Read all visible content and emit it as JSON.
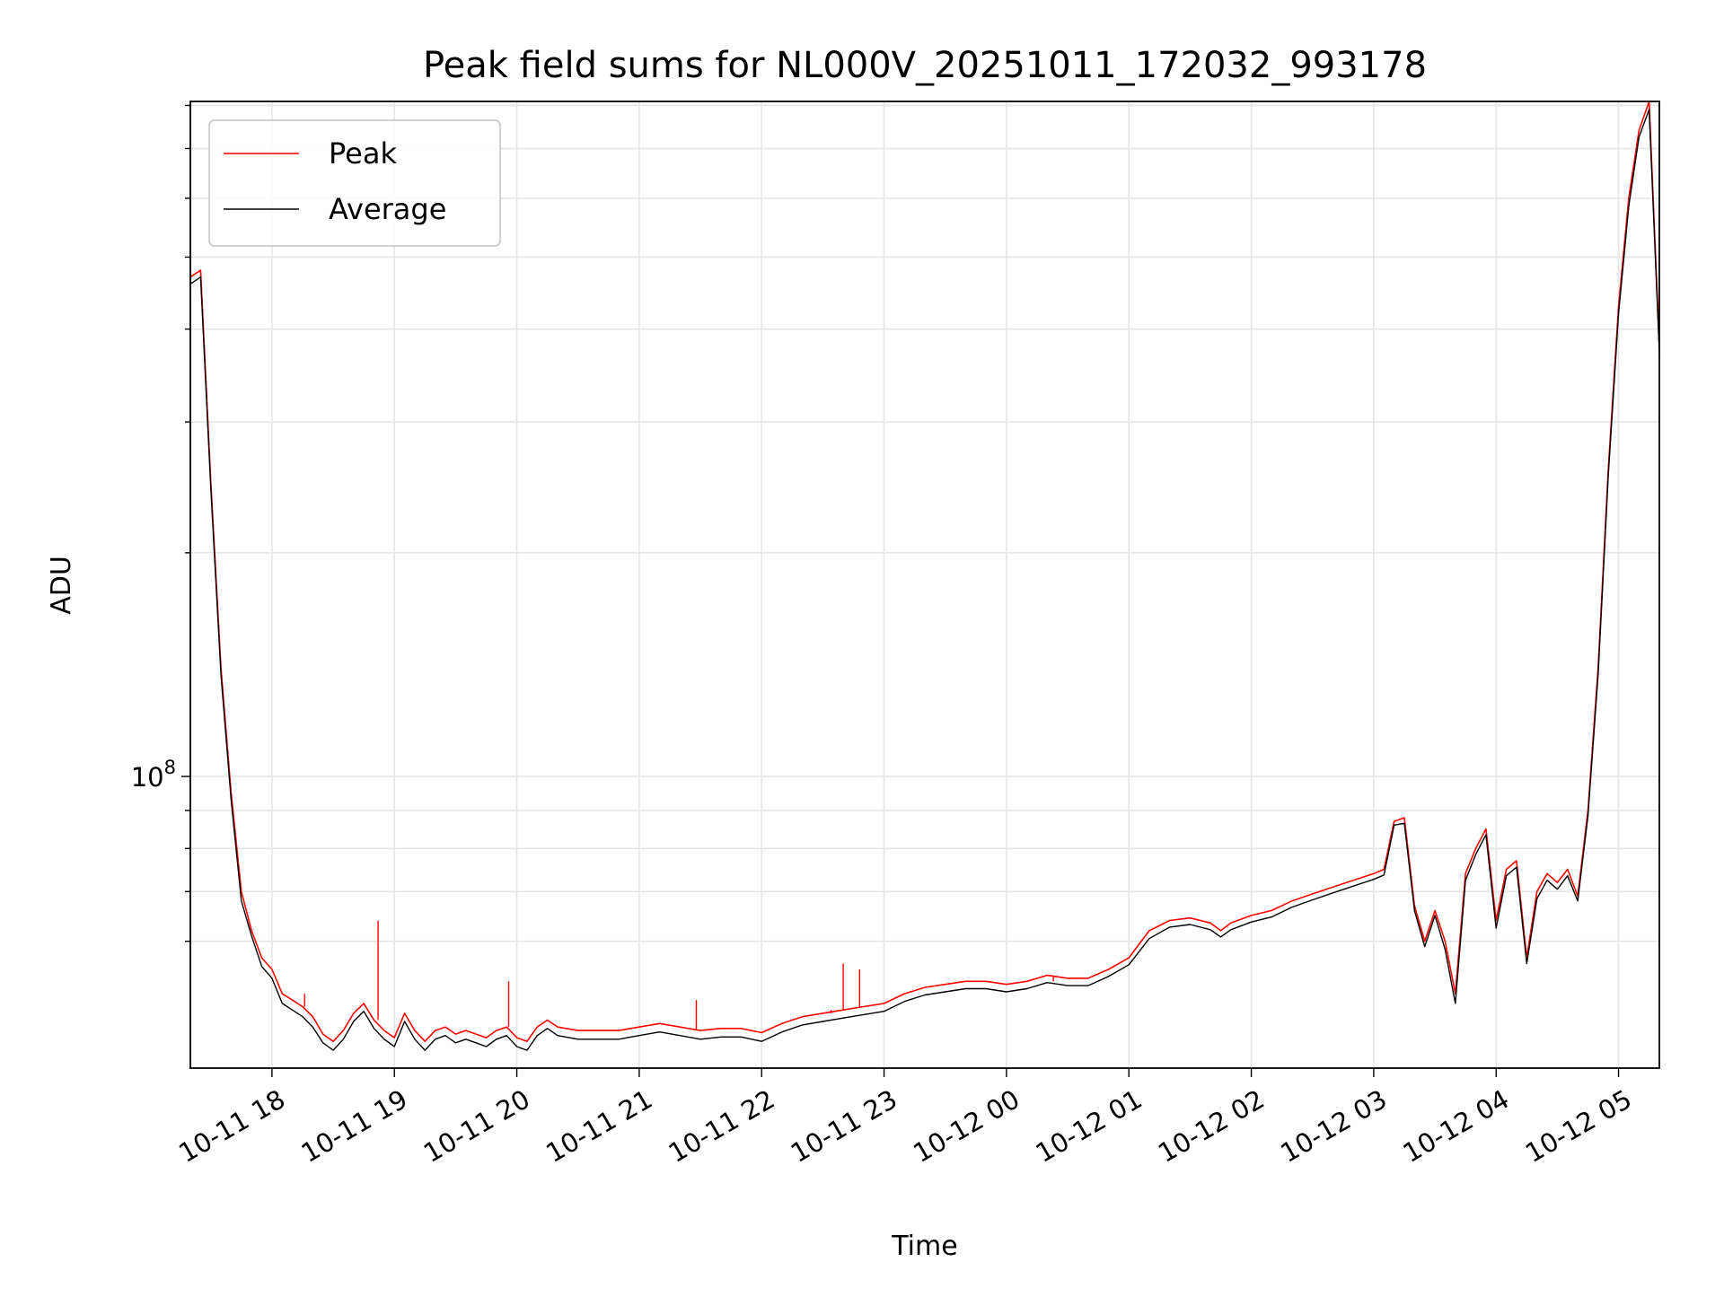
{
  "chart_data": {
    "type": "line",
    "title": "Peak field sums for NL000V_20251011_172032_993178",
    "xlabel": "Time",
    "ylabel": "ADU",
    "yscale": "log",
    "grid": true,
    "legend_position": "top-left",
    "xlim": [
      "2025-10-11 17:20",
      "2025-10-12 05:20"
    ],
    "ylim": [
      40500000,
      810000000
    ],
    "x_ticks": [
      {
        "t": "2025-10-11 18:00",
        "label": "10-11 18"
      },
      {
        "t": "2025-10-11 19:00",
        "label": "10-11 19"
      },
      {
        "t": "2025-10-11 20:00",
        "label": "10-11 20"
      },
      {
        "t": "2025-10-11 21:00",
        "label": "10-11 21"
      },
      {
        "t": "2025-10-11 22:00",
        "label": "10-11 22"
      },
      {
        "t": "2025-10-11 23:00",
        "label": "10-11 23"
      },
      {
        "t": "2025-10-12 00:00",
        "label": "10-12 00"
      },
      {
        "t": "2025-10-12 01:00",
        "label": "10-12 01"
      },
      {
        "t": "2025-10-12 02:00",
        "label": "10-12 02"
      },
      {
        "t": "2025-10-12 03:00",
        "label": "10-12 03"
      },
      {
        "t": "2025-10-12 04:00",
        "label": "10-12 04"
      },
      {
        "t": "2025-10-12 05:00",
        "label": "10-12 05"
      }
    ],
    "y_ticks": [
      {
        "value": 100000000,
        "base": "10",
        "exp": "8"
      }
    ],
    "y_minor_ticks": [
      60000000,
      70000000,
      80000000,
      90000000,
      200000000,
      300000000,
      400000000,
      500000000,
      600000000,
      700000000,
      800000000
    ],
    "x": [
      "2025-10-11 17:20",
      "2025-10-11 17:25",
      "2025-10-11 17:30",
      "2025-10-11 17:35",
      "2025-10-11 17:40",
      "2025-10-11 17:45",
      "2025-10-11 17:50",
      "2025-10-11 17:55",
      "2025-10-11 18:00",
      "2025-10-11 18:05",
      "2025-10-11 18:10",
      "2025-10-11 18:15",
      "2025-10-11 18:20",
      "2025-10-11 18:25",
      "2025-10-11 18:30",
      "2025-10-11 18:35",
      "2025-10-11 18:40",
      "2025-10-11 18:45",
      "2025-10-11 18:50",
      "2025-10-11 18:55",
      "2025-10-11 19:00",
      "2025-10-11 19:05",
      "2025-10-11 19:10",
      "2025-10-11 19:15",
      "2025-10-11 19:20",
      "2025-10-11 19:25",
      "2025-10-11 19:30",
      "2025-10-11 19:35",
      "2025-10-11 19:40",
      "2025-10-11 19:45",
      "2025-10-11 19:50",
      "2025-10-11 19:55",
      "2025-10-11 20:00",
      "2025-10-11 20:05",
      "2025-10-11 20:10",
      "2025-10-11 20:15",
      "2025-10-11 20:20",
      "2025-10-11 20:30",
      "2025-10-11 20:40",
      "2025-10-11 20:50",
      "2025-10-11 21:00",
      "2025-10-11 21:10",
      "2025-10-11 21:20",
      "2025-10-11 21:30",
      "2025-10-11 21:40",
      "2025-10-11 21:50",
      "2025-10-11 22:00",
      "2025-10-11 22:10",
      "2025-10-11 22:20",
      "2025-10-11 22:30",
      "2025-10-11 22:40",
      "2025-10-11 22:50",
      "2025-10-11 23:00",
      "2025-10-11 23:10",
      "2025-10-11 23:20",
      "2025-10-11 23:30",
      "2025-10-11 23:40",
      "2025-10-11 23:50",
      "2025-10-12 00:00",
      "2025-10-12 00:10",
      "2025-10-12 00:20",
      "2025-10-12 00:30",
      "2025-10-12 00:40",
      "2025-10-12 00:50",
      "2025-10-12 01:00",
      "2025-10-12 01:10",
      "2025-10-12 01:20",
      "2025-10-12 01:30",
      "2025-10-12 01:40",
      "2025-10-12 01:45",
      "2025-10-12 01:50",
      "2025-10-12 02:00",
      "2025-10-12 02:10",
      "2025-10-12 02:20",
      "2025-10-12 02:30",
      "2025-10-12 02:40",
      "2025-10-12 02:50",
      "2025-10-12 03:00",
      "2025-10-12 03:05",
      "2025-10-12 03:10",
      "2025-10-12 03:15",
      "2025-10-12 03:20",
      "2025-10-12 03:25",
      "2025-10-12 03:30",
      "2025-10-12 03:35",
      "2025-10-12 03:40",
      "2025-10-12 03:45",
      "2025-10-12 03:50",
      "2025-10-12 03:55",
      "2025-10-12 04:00",
      "2025-10-12 04:05",
      "2025-10-12 04:10",
      "2025-10-12 04:15",
      "2025-10-12 04:20",
      "2025-10-12 04:25",
      "2025-10-12 04:30",
      "2025-10-12 04:35",
      "2025-10-12 04:40",
      "2025-10-12 04:45",
      "2025-10-12 04:50",
      "2025-10-12 04:55",
      "2025-10-12 05:00",
      "2025-10-12 05:05",
      "2025-10-12 05:10",
      "2025-10-12 05:15",
      "2025-10-12 05:20"
    ],
    "series": [
      {
        "name": "Peak",
        "color": "#ff0000",
        "values": [
          470000000,
          480000000,
          250000000,
          140000000,
          95000000,
          70000000,
          62000000,
          57000000,
          55000000,
          51000000,
          50000000,
          49000000,
          47500000,
          45000000,
          44000000,
          45500000,
          48000000,
          49500000,
          47000000,
          45500000,
          44500000,
          48000000,
          45500000,
          44000000,
          45500000,
          46000000,
          45000000,
          45500000,
          45000000,
          44500000,
          45500000,
          46000000,
          44500000,
          44000000,
          46000000,
          47000000,
          46000000,
          45500000,
          45500000,
          45500000,
          46000000,
          46500000,
          46000000,
          45500000,
          45800000,
          45800000,
          45200000,
          46500000,
          47500000,
          48000000,
          48500000,
          49000000,
          49500000,
          51000000,
          52000000,
          52500000,
          53000000,
          53000000,
          52500000,
          53000000,
          54000000,
          53500000,
          53500000,
          55000000,
          57000000,
          62000000,
          64000000,
          64500000,
          63500000,
          62000000,
          63500000,
          65000000,
          66000000,
          68000000,
          69500000,
          71000000,
          72500000,
          74000000,
          75000000,
          87000000,
          88000000,
          67000000,
          60000000,
          66000000,
          60000000,
          51000000,
          74000000,
          80000000,
          85000000,
          64000000,
          75000000,
          77000000,
          57000000,
          70000000,
          74000000,
          72000000,
          75000000,
          69000000,
          90000000,
          140000000,
          260000000,
          430000000,
          600000000,
          740000000,
          810000000,
          380000000
        ]
      },
      {
        "name": "Average",
        "color": "#000000",
        "values": [
          460000000,
          470000000,
          245000000,
          137000000,
          93000000,
          68000000,
          61000000,
          55500000,
          53500000,
          49500000,
          48500000,
          47500000,
          46000000,
          43800000,
          42800000,
          44300000,
          46800000,
          48300000,
          45800000,
          44300000,
          43300000,
          46800000,
          44300000,
          42800000,
          44300000,
          44800000,
          43800000,
          44300000,
          43800000,
          43300000,
          44300000,
          44800000,
          43300000,
          42800000,
          44800000,
          45800000,
          44800000,
          44300000,
          44300000,
          44300000,
          44800000,
          45300000,
          44800000,
          44300000,
          44600000,
          44600000,
          44000000,
          45300000,
          46300000,
          46800000,
          47300000,
          47800000,
          48300000,
          49800000,
          50800000,
          51300000,
          51800000,
          51800000,
          51300000,
          51800000,
          52800000,
          52300000,
          52300000,
          53800000,
          55800000,
          60500000,
          62700000,
          63200000,
          62200000,
          60800000,
          62200000,
          63700000,
          64700000,
          66700000,
          68200000,
          69700000,
          71200000,
          72700000,
          73700000,
          86000000,
          86500000,
          66000000,
          59000000,
          65000000,
          58500000,
          49500000,
          72500000,
          78500000,
          83500000,
          62500000,
          73500000,
          75500000,
          56000000,
          68500000,
          72500000,
          70500000,
          73500000,
          68000000,
          88500000,
          137000000,
          255000000,
          420000000,
          585000000,
          725000000,
          790000000,
          372000000
        ]
      }
    ],
    "spikes": [
      {
        "series": "Peak",
        "x": "2025-10-11 18:52",
        "value": 64000000
      },
      {
        "series": "Peak",
        "x": "2025-10-11 18:16",
        "value": 51000000
      },
      {
        "series": "Peak",
        "x": "2025-10-11 19:56",
        "value": 53000000
      },
      {
        "series": "Peak",
        "x": "2025-10-11 21:28",
        "value": 50000000
      },
      {
        "series": "Peak",
        "x": "2025-10-11 22:34",
        "value": 48500000
      },
      {
        "series": "Peak",
        "x": "2025-10-11 22:40",
        "value": 56000000
      },
      {
        "series": "Peak",
        "x": "2025-10-11 22:48",
        "value": 55000000
      },
      {
        "series": "Peak",
        "x": "2025-10-12 00:23",
        "value": 53000000
      }
    ]
  }
}
